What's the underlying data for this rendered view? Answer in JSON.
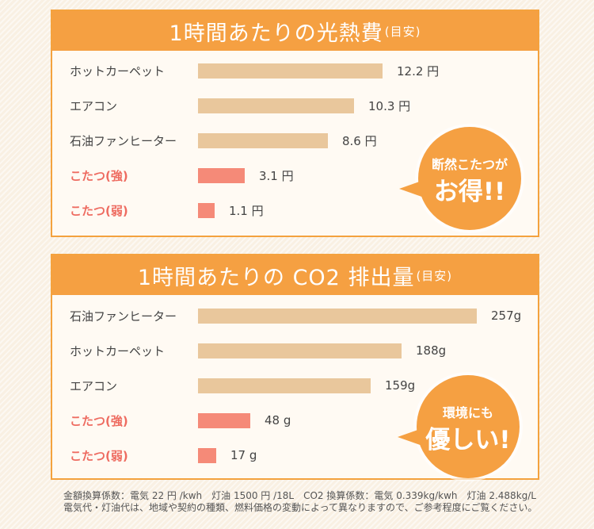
{
  "chart_data": [
    {
      "type": "bar",
      "title": "1時間あたりの光熱費",
      "title_note": "(目安)",
      "categories": [
        "ホットカーペット",
        "エアコン",
        "石油ファンヒーター",
        "こたつ(強)",
        "こたつ(弱)"
      ],
      "values": [
        12.2,
        10.3,
        8.6,
        3.1,
        1.1
      ],
      "value_labels": [
        "12.2 円",
        "10.3 円",
        "8.6 円",
        "3.1 円",
        "1.1 円"
      ],
      "highlight": [
        false,
        false,
        false,
        true,
        true
      ],
      "unit": "円"
    },
    {
      "type": "bar",
      "title": "1時間あたりの CO2 排出量",
      "title_note": "(目安)",
      "categories": [
        "石油ファンヒーター",
        "ホットカーペット",
        "エアコン",
        "こたつ(強)",
        "こたつ(弱)"
      ],
      "values": [
        257,
        188,
        159,
        48,
        17
      ],
      "value_labels": [
        "257g",
        "188g",
        "159g",
        "48 g",
        "17 g"
      ],
      "highlight": [
        false,
        false,
        false,
        true,
        true
      ],
      "unit": "g"
    }
  ],
  "callouts": [
    {
      "line1": "断然こたつが",
      "line2": "お得!!"
    },
    {
      "line1": "環境にも",
      "line2": "優しい!"
    }
  ],
  "footnote": {
    "line1": "金額換算係数：電気 22 円 /kwh　灯油 1500 円 /18L　CO2 換算係数：電気 0.339kg/kwh　灯油 2.488kg/L",
    "line2": "電気代・灯油代は、地域や契約の種類、燃料価格の変動によって異なりますので、ご参考程度にご覧ください。"
  },
  "colors": {
    "accent": "#f5a042",
    "bar": "#e9c79c",
    "bar_highlight": "#f58a78",
    "highlight_text": "#ee6b60"
  }
}
